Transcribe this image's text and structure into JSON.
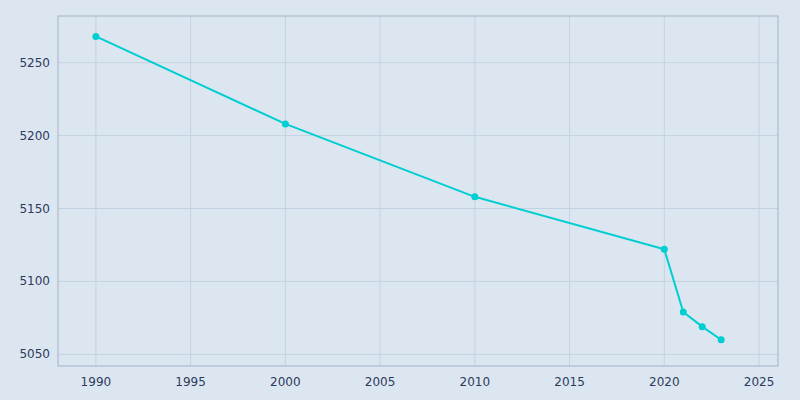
{
  "chart_data": {
    "type": "line",
    "x": [
      1990,
      2000,
      2010,
      2020,
      2021,
      2022,
      2023
    ],
    "values": [
      5268,
      5208,
      5158,
      5122,
      5079,
      5069,
      5060
    ],
    "color": "#00CED1",
    "marker": "circle",
    "xlim": [
      1988,
      2026
    ],
    "ylim": [
      5042,
      5282
    ],
    "xticks": [
      1990,
      1995,
      2000,
      2005,
      2010,
      2015,
      2020,
      2025
    ],
    "yticks": [
      5050,
      5100,
      5150,
      5200,
      5250
    ],
    "grid": true
  }
}
